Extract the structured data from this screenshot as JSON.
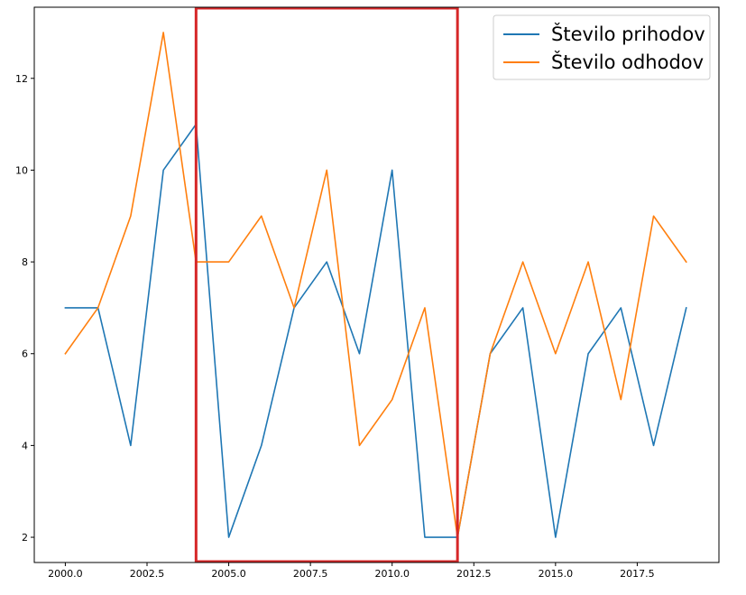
{
  "chart_data": {
    "type": "line",
    "x": [
      2000,
      2001,
      2002,
      2003,
      2004,
      2005,
      2006,
      2007,
      2008,
      2009,
      2010,
      2011,
      2012,
      2013,
      2014,
      2015,
      2016,
      2017,
      2018,
      2019
    ],
    "series": [
      {
        "name": "Število prihodov",
        "color": "#1f77b4",
        "values": [
          7,
          7,
          4,
          10,
          11,
          2,
          4,
          7,
          8,
          6,
          10,
          2,
          2,
          6,
          7,
          2,
          6,
          7,
          4,
          7
        ]
      },
      {
        "name": "Število odhodov",
        "color": "#ff7f0e",
        "values": [
          6,
          7,
          9,
          13,
          8,
          8,
          9,
          7,
          10,
          4,
          5,
          7,
          2,
          6,
          8,
          6,
          8,
          5,
          9,
          8
        ]
      }
    ],
    "xlim": [
      1999.05,
      2020.0
    ],
    "ylim": [
      1.45,
      13.55
    ],
    "xticks": [
      2000.0,
      2002.5,
      2005.0,
      2007.5,
      2010.0,
      2012.5,
      2015.0,
      2017.5
    ],
    "xtick_labels": [
      "2000.0",
      "2002.5",
      "2005.0",
      "2007.5",
      "2010.0",
      "2012.5",
      "2015.0",
      "2017.5"
    ],
    "yticks": [
      2,
      4,
      6,
      8,
      10,
      12
    ],
    "ytick_labels": [
      "2",
      "4",
      "6",
      "8",
      "10",
      "12"
    ],
    "grid": false,
    "legend": "top-right",
    "highlight": {
      "x_range": [
        2004,
        2012
      ],
      "color": "#d62728"
    }
  }
}
